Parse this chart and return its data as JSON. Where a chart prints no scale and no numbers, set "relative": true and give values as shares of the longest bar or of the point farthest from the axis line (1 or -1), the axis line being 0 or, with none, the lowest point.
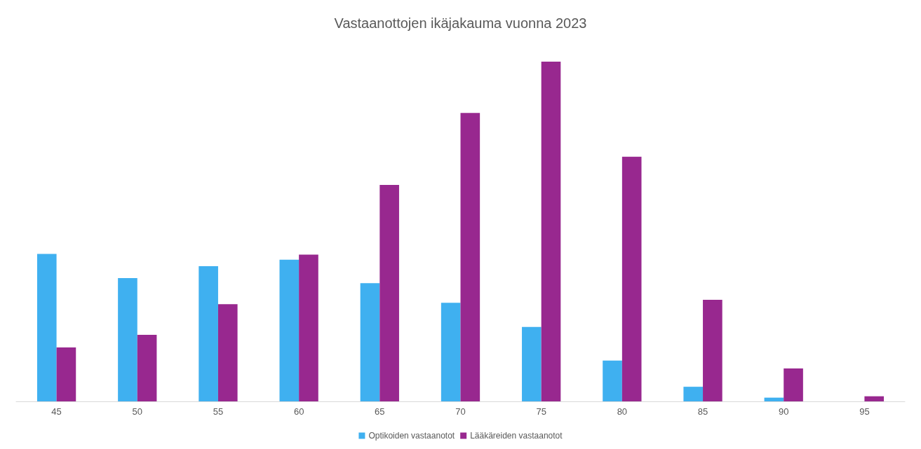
{
  "chart_data": {
    "type": "bar",
    "title": "Vastaanottojen ikäjakauma vuonna 2023",
    "relative": true,
    "categories": [
      "45",
      "50",
      "55",
      "60",
      "65",
      "70",
      "75",
      "80",
      "85",
      "90",
      "95"
    ],
    "series": [
      {
        "name": "Optikoiden vastaanotot",
        "color": "#3fb0f0",
        "values": [
          0.434,
          0.363,
          0.398,
          0.417,
          0.348,
          0.29,
          0.219,
          0.12,
          0.043,
          0.011,
          null
        ]
      },
      {
        "name": "Lääkäreiden vastaanotot",
        "color": "#98288f",
        "values": [
          0.159,
          0.196,
          0.286,
          0.432,
          0.637,
          0.849,
          1,
          0.72,
          0.299,
          0.097,
          0.015
        ]
      }
    ],
    "legend": "bottom",
    "grid": false
  }
}
